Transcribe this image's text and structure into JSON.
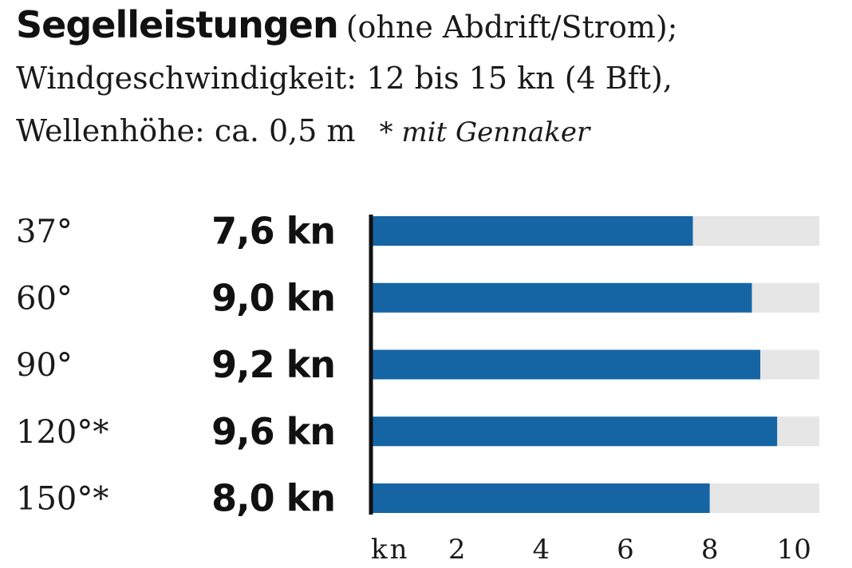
{
  "header": {
    "title": "Segelleistungen",
    "subtitle_part1": "(ohne Abdrift/Strom);",
    "subtitle_line2": "Windgeschwindigkeit: 12 bis 15 kn (4 Bft),",
    "subtitle_line3": "Wellenhöhe: ca. 0,5 m",
    "footnote": "* mit Gennaker"
  },
  "colors": {
    "bar": "#1565a5",
    "track": "#e6e6e6",
    "axis": "#111111"
  },
  "chart_data": {
    "type": "bar",
    "orientation": "horizontal",
    "categories": [
      "37°",
      "60°",
      "90°",
      "120°*",
      "150°*"
    ],
    "values": [
      7.6,
      9.0,
      9.2,
      9.6,
      8.0
    ],
    "value_labels": [
      "7,6 kn",
      "9,0 kn",
      "9,2 kn",
      "9,6 kn",
      "8,0 kn"
    ],
    "xlim": [
      0,
      10.6
    ],
    "x_ticks": [
      2,
      4,
      6,
      8,
      10
    ],
    "x_tick_labels": [
      "2",
      "4",
      "6",
      "8",
      "10"
    ],
    "x_unit_label": "kn"
  }
}
